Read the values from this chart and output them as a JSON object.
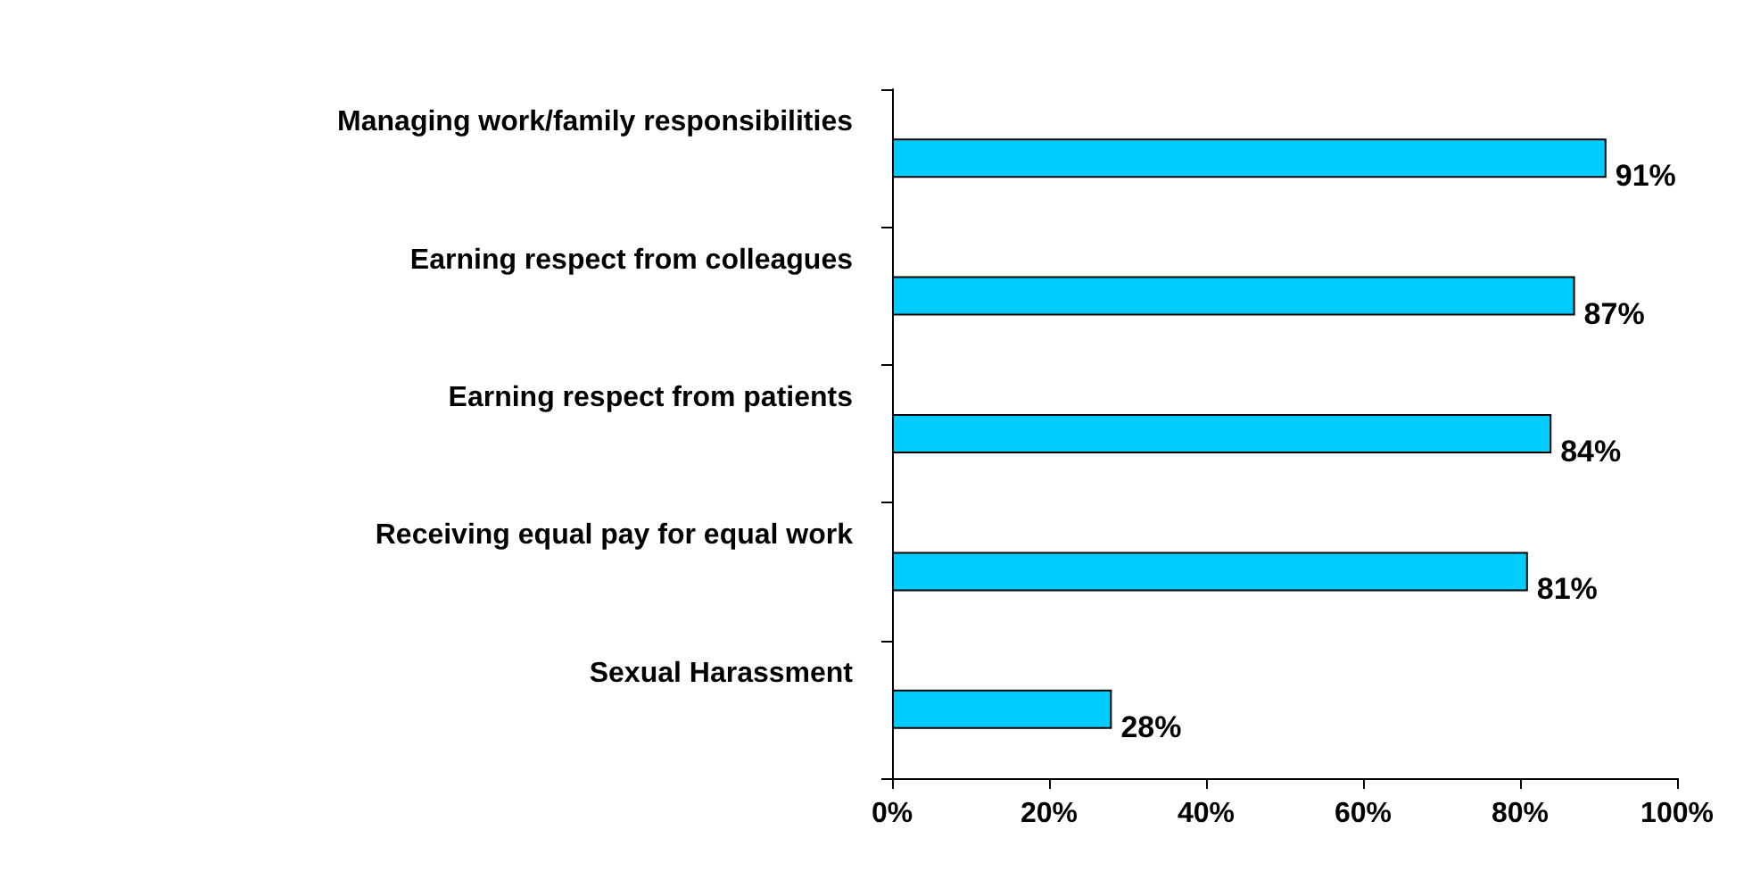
{
  "chart_data": {
    "type": "bar",
    "orientation": "horizontal",
    "categories": [
      "Managing work/family responsibilities",
      "Earning respect from colleagues",
      "Earning respect from patients",
      "Receiving equal pay for equal work",
      "Sexual Harassment"
    ],
    "values": [
      91,
      87,
      84,
      81,
      28
    ],
    "color": "#00ccff",
    "value_labels": [
      "91%",
      "87%",
      "84%",
      "81%",
      "28%"
    ],
    "xlim": [
      0,
      100
    ],
    "xticks": [
      {
        "value": 0,
        "label": "0%"
      },
      {
        "value": 20,
        "label": "20%"
      },
      {
        "value": 40,
        "label": "40%"
      },
      {
        "value": 60,
        "label": "60%"
      },
      {
        "value": 80,
        "label": "80%"
      },
      {
        "value": 100,
        "label": "100%"
      }
    ],
    "grid": false
  }
}
